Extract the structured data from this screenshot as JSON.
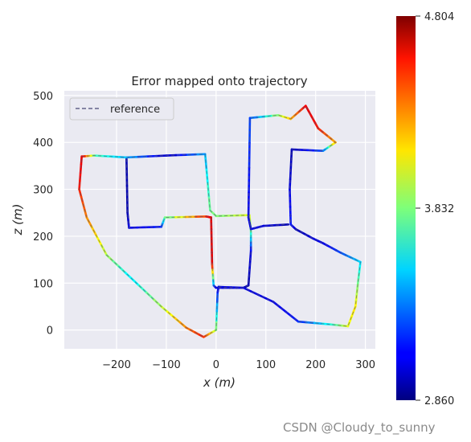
{
  "chart_data": {
    "type": "line",
    "title": "Error mapped onto trajectory",
    "xlabel": "x (m)",
    "ylabel": "z (m)",
    "xlim": [
      -305,
      320
    ],
    "ylim": [
      -40,
      510
    ],
    "xticks": [
      "−200",
      "−100",
      "0",
      "100",
      "200",
      "300"
    ],
    "xtick_values": [
      -200,
      -100,
      0,
      100,
      200,
      300
    ],
    "yticks": [
      "0",
      "100",
      "200",
      "300",
      "400",
      "500"
    ],
    "ytick_values": [
      0,
      100,
      200,
      300,
      400,
      500
    ],
    "grid": true,
    "legend": {
      "placement": "top-left",
      "entries": [
        "reference"
      ]
    },
    "colorbar": {
      "colormap": "jet",
      "min": 2.86,
      "max": 4.804,
      "ticks": [
        "4.804",
        "3.832",
        "2.860"
      ],
      "tick_values": [
        4.804,
        3.832,
        2.86
      ]
    },
    "series": [
      {
        "points": [
          [
            -180,
            365,
            0.05
          ],
          [
            -178,
            250,
            0.05
          ],
          [
            -175,
            218,
            0.1
          ],
          [
            -110,
            220,
            0.15
          ],
          [
            -103,
            240,
            0.45
          ],
          [
            -20,
            242,
            0.85
          ],
          [
            -10,
            240,
            0.9
          ],
          [
            -8,
            140,
            0.9
          ],
          [
            -5,
            95,
            0.25
          ],
          [
            0,
            90,
            0.1
          ],
          [
            55,
            90,
            0.05
          ],
          [
            65,
            95,
            0.05
          ],
          [
            70,
            170,
            0.1
          ],
          [
            70,
            210,
            0.45
          ],
          [
            67,
            245,
            0.6
          ],
          [
            0,
            243,
            0.5
          ],
          [
            -12,
            255,
            0.5
          ],
          [
            -22,
            375,
            0.3
          ],
          [
            -100,
            372,
            0.05
          ],
          [
            -180,
            368,
            0.3
          ],
          [
            -245,
            372,
            0.45
          ],
          [
            -270,
            370,
            0.9
          ],
          [
            -275,
            300,
            0.85
          ],
          [
            -260,
            240,
            0.75
          ],
          [
            -220,
            160,
            0.55
          ],
          [
            -170,
            110,
            0.35
          ],
          [
            -110,
            50,
            0.55
          ],
          [
            -60,
            5,
            0.75
          ],
          [
            -25,
            -15,
            0.85
          ],
          [
            0,
            0,
            0.55
          ],
          [
            3,
            80,
            0.15
          ],
          [
            5,
            92,
            0.1
          ],
          [
            55,
            90,
            0.1
          ],
          [
            115,
            60,
            0.1
          ],
          [
            165,
            18,
            0.15
          ],
          [
            230,
            12,
            0.4
          ],
          [
            265,
            8,
            0.6
          ],
          [
            280,
            50,
            0.65
          ],
          [
            285,
            100,
            0.5
          ],
          [
            290,
            145,
            0.35
          ],
          [
            250,
            165,
            0.2
          ],
          [
            215,
            185,
            0.1
          ],
          [
            195,
            195,
            0.1
          ],
          [
            160,
            215,
            0.05
          ],
          [
            150,
            225,
            0.15
          ],
          [
            148,
            300,
            0.1
          ],
          [
            152,
            385,
            0.05
          ],
          [
            215,
            382,
            0.2
          ],
          [
            240,
            400,
            0.7
          ],
          [
            205,
            430,
            0.85
          ],
          [
            180,
            478,
            0.9
          ],
          [
            150,
            450,
            0.7
          ],
          [
            125,
            458,
            0.55
          ],
          [
            68,
            452,
            0.2
          ],
          [
            65,
            240,
            0.1
          ],
          [
            70,
            215,
            0.1
          ],
          [
            95,
            222,
            0.1
          ],
          [
            145,
            225,
            0.05
          ]
        ]
      }
    ]
  },
  "watermark": "CSDN @Cloudy_to_sunny"
}
